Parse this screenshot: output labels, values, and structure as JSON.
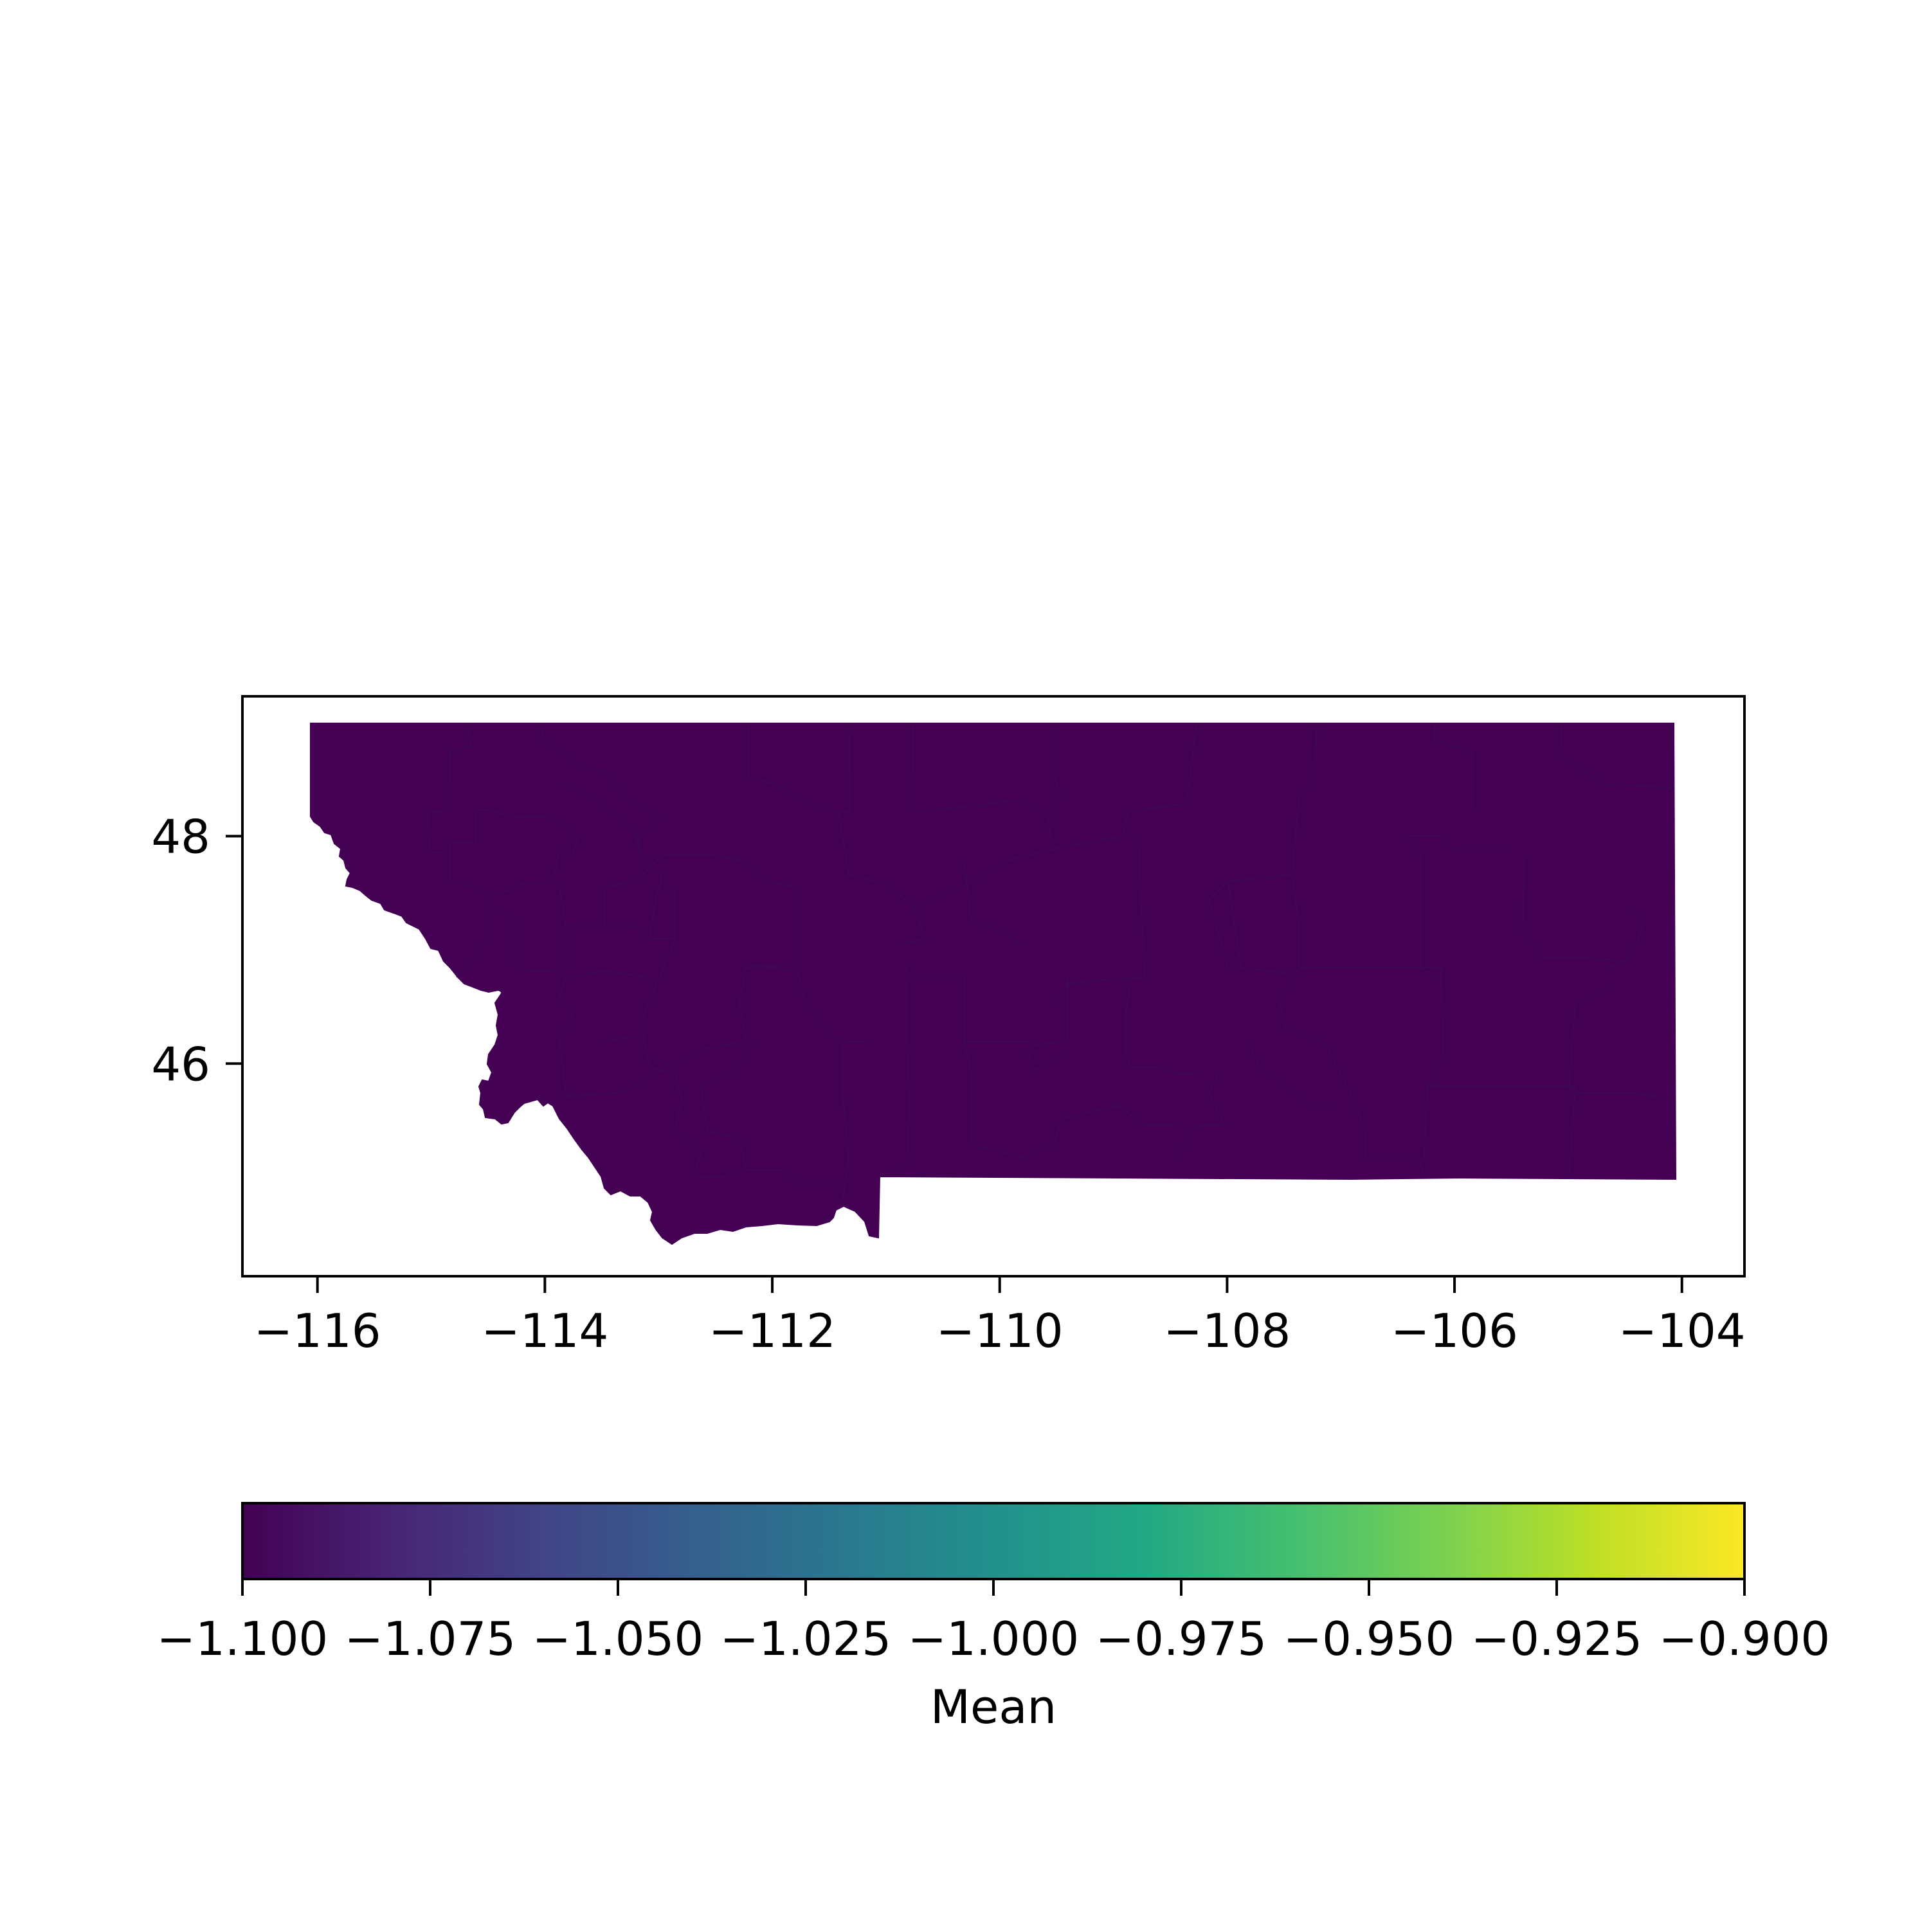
{
  "chart_data": {
    "type": "choropleth",
    "region": "Montana counties",
    "fill_color": "#440154",
    "all_regions_value": -1.1,
    "x_ticks": [
      "−116",
      "−114",
      "−112",
      "−110",
      "−108",
      "−106",
      "−104"
    ],
    "x_tick_values": [
      -116,
      -114,
      -112,
      -110,
      -108,
      -106,
      -104
    ],
    "y_ticks": [
      "46",
      "48"
    ],
    "y_tick_values": [
      46,
      48
    ],
    "xlim": [
      -116.66,
      -103.45
    ],
    "ylim": [
      44.13,
      49.23
    ],
    "colorbar": {
      "label": "Mean",
      "colormap": "viridis",
      "range": [
        -1.1,
        -0.9
      ],
      "tick_labels": [
        "−1.100",
        "−1.075",
        "−1.050",
        "−1.025",
        "−1.000",
        "−0.975",
        "−0.950",
        "−0.925",
        "−0.900"
      ],
      "tick_values": [
        -1.1,
        -1.075,
        -1.05,
        -1.025,
        -1.0,
        -0.975,
        -0.95,
        -0.925,
        -0.9
      ]
    }
  }
}
